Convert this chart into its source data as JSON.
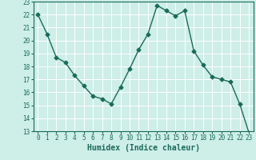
{
  "x": [
    0,
    1,
    2,
    3,
    4,
    5,
    6,
    7,
    8,
    9,
    10,
    11,
    12,
    13,
    14,
    15,
    16,
    17,
    18,
    19,
    20,
    21,
    22,
    23
  ],
  "y": [
    22.0,
    20.5,
    18.7,
    18.3,
    17.3,
    16.5,
    15.7,
    15.5,
    15.1,
    16.4,
    17.8,
    19.3,
    20.5,
    22.7,
    22.3,
    21.9,
    22.3,
    19.2,
    18.1,
    17.2,
    17.0,
    16.8,
    15.1,
    12.9
  ],
  "line_color": "#1a6b5a",
  "marker": "D",
  "markersize": 2.5,
  "linewidth": 1.0,
  "xlabel": "Humidex (Indice chaleur)",
  "xlabel_fontsize": 7,
  "bg_color": "#ceeee8",
  "grid_color": "#ffffff",
  "tick_color": "#1a6b5a",
  "label_color": "#1a6b5a",
  "ylim": [
    13,
    23
  ],
  "yticks": [
    13,
    14,
    15,
    16,
    17,
    18,
    19,
    20,
    21,
    22,
    23
  ],
  "xticks": [
    0,
    1,
    2,
    3,
    4,
    5,
    6,
    7,
    8,
    9,
    10,
    11,
    12,
    13,
    14,
    15,
    16,
    17,
    18,
    19,
    20,
    21,
    22,
    23
  ],
  "tick_fontsize": 5.5
}
